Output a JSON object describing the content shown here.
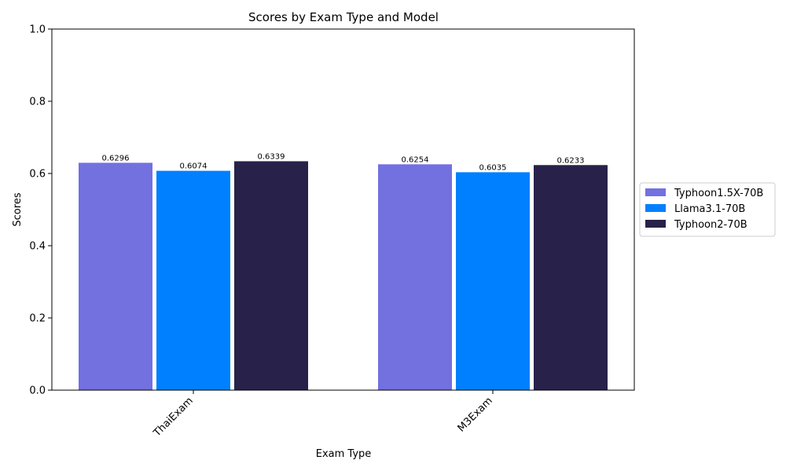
{
  "chart_data": {
    "type": "bar",
    "title": "Scores by Exam Type and Model",
    "xlabel": "Exam Type",
    "ylabel": "Scores",
    "categories": [
      "ThaiExam",
      "M3Exam"
    ],
    "ylim": [
      0,
      1.0
    ],
    "yticks": [
      "0.0",
      "0.2",
      "0.4",
      "0.6",
      "0.8",
      "1.0"
    ],
    "series": [
      {
        "name": "Typhoon1.5X-70B",
        "color": "#7370e0",
        "values": [
          0.6296,
          0.6254
        ],
        "labels": [
          "0.6296",
          "0.6254"
        ]
      },
      {
        "name": "Llama3.1-70B",
        "color": "#0080ff",
        "values": [
          0.6074,
          0.6035
        ],
        "labels": [
          "0.6074",
          "0.6035"
        ]
      },
      {
        "name": "Typhoon2-70B",
        "color": "#28224a",
        "values": [
          0.6339,
          0.6233
        ],
        "labels": [
          "0.6339",
          "0.6233"
        ]
      }
    ],
    "legend_position": "right",
    "grid": false
  }
}
